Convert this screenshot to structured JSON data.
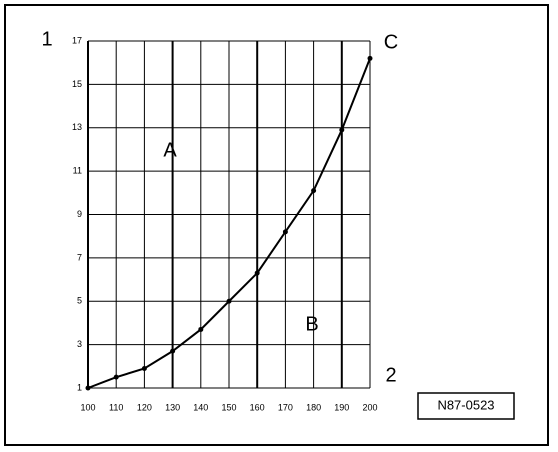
{
  "chart_data": {
    "type": "line",
    "x": [
      100,
      110,
      120,
      130,
      140,
      150,
      160,
      170,
      180,
      190,
      200
    ],
    "series": [
      {
        "color": "#000000",
        "values": [
          1,
          1.5,
          1.9,
          2.7,
          3.7,
          5.0,
          6.3,
          8.2,
          10.1,
          12.9,
          16.2
        ]
      }
    ],
    "xlim": [
      100,
      200
    ],
    "xticks": [
      100,
      110,
      120,
      130,
      140,
      150,
      160,
      170,
      180,
      190,
      200
    ],
    "ylim": [
      1,
      17
    ],
    "yticks": [
      1,
      3,
      5,
      7,
      9,
      11,
      13,
      15,
      17
    ],
    "grid": true,
    "annotations": [
      "1",
      "C",
      "A",
      "B",
      "2",
      "N87-0523"
    ]
  }
}
